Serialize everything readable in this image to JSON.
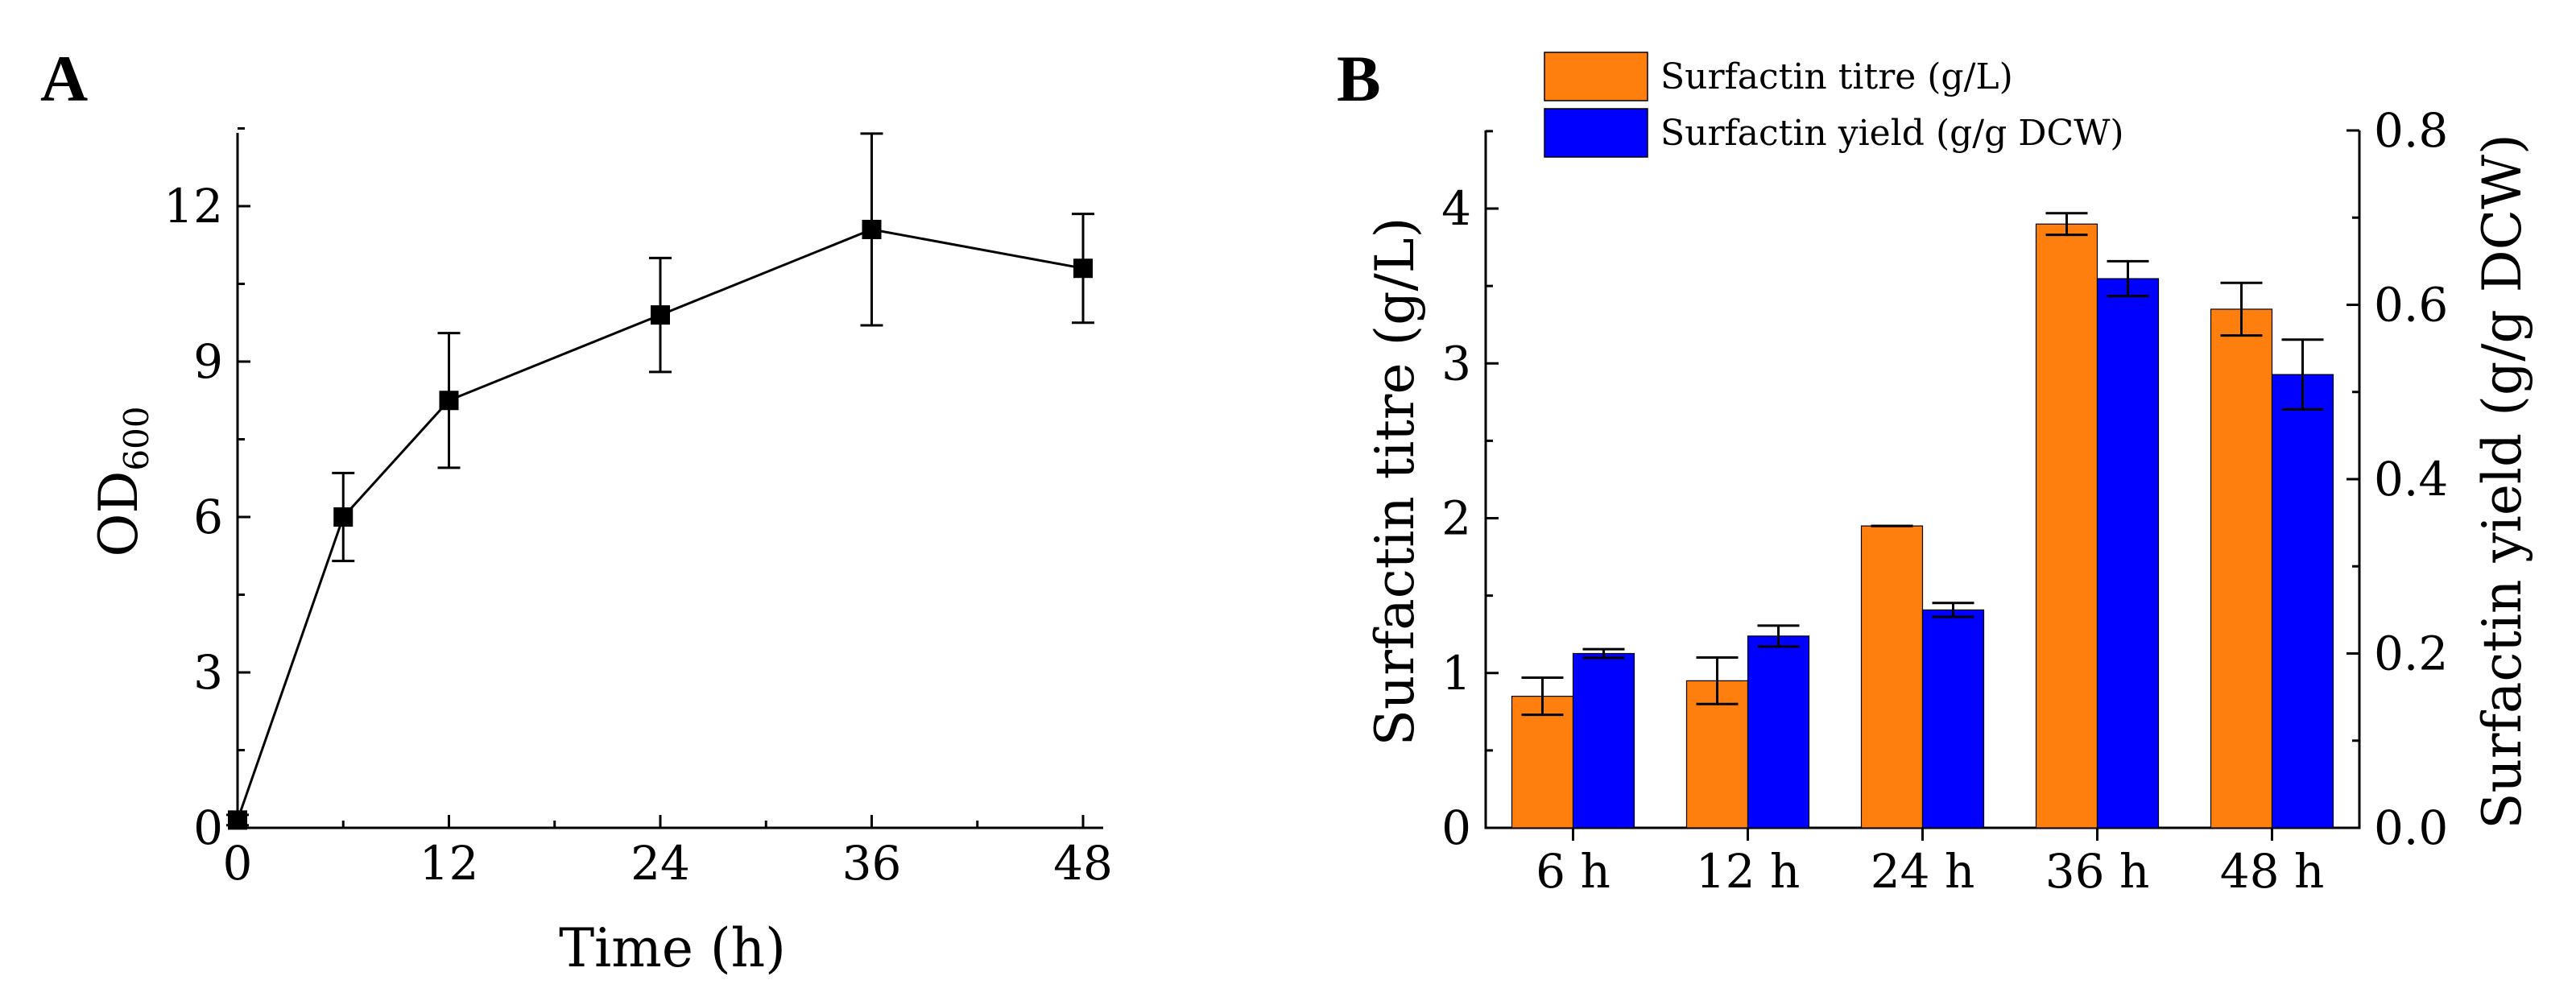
{
  "chart_data": [
    {
      "panel": "A",
      "type": "line",
      "x": [
        0,
        6,
        12,
        24,
        36,
        48
      ],
      "y": [
        0.15,
        6.0,
        8.25,
        9.9,
        11.55,
        10.8
      ],
      "yerr": [
        0.1,
        0.85,
        1.3,
        1.1,
        1.85,
        1.05
      ],
      "xlabel": "Time (h)",
      "ylabel": "OD",
      "ylabel_sub": "600",
      "xlim": [
        0,
        48
      ],
      "ylim": [
        0,
        14
      ],
      "xticks": [
        0,
        12,
        24,
        36,
        48
      ],
      "yticks": [
        0,
        3,
        6,
        9,
        12
      ],
      "line_color": "#000000",
      "marker": "square"
    },
    {
      "panel": "B",
      "type": "bar",
      "categories": [
        "6 h",
        "12 h",
        "24 h",
        "36 h",
        "48 h"
      ],
      "series": [
        {
          "name": "Surfactin titre (g/L)",
          "axis": "left",
          "color": "#FF7F0E",
          "values": [
            0.85,
            0.95,
            1.95,
            3.9,
            3.35
          ],
          "errors": [
            0.12,
            0.15,
            0.0,
            0.07,
            0.17
          ]
        },
        {
          "name": "Surfactin yield (g/g DCW)",
          "axis": "right",
          "color": "#0000FF",
          "values": [
            0.2,
            0.22,
            0.25,
            0.63,
            0.52
          ],
          "errors": [
            0.005,
            0.012,
            0.008,
            0.02,
            0.04
          ]
        }
      ],
      "ylabel": "Surfactin titre (g/L)",
      "ylabel_right": "Surfactin yield (g/g DCW)",
      "ylim": [
        0,
        4.5
      ],
      "ylim_right": [
        0,
        0.8
      ],
      "yticks": [
        "0",
        "1",
        "2",
        "3",
        "4"
      ],
      "yticks_right": [
        "0.0",
        "0.2",
        "0.4",
        "0.6",
        "0.8"
      ],
      "legend_position": "top-left"
    }
  ]
}
